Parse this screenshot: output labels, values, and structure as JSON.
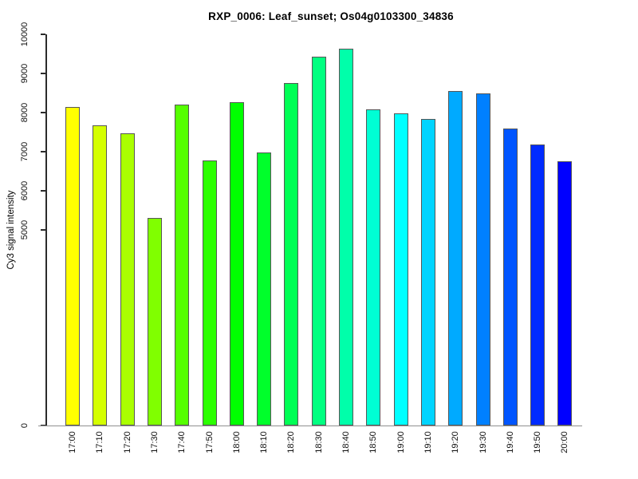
{
  "chart_data": {
    "type": "bar",
    "title": "RXP_0006: Leaf_sunset; Os04g0103300_34836",
    "xlabel": "",
    "ylabel": "Cy3 signal intensity",
    "ylim": [
      0,
      10000
    ],
    "grid": false,
    "legend": "none",
    "y_tick_values": [
      0,
      5000,
      6000,
      7000,
      8000,
      9000,
      10000
    ],
    "y_tick_labels": [
      "0",
      "5000",
      "6000",
      "7000",
      "8000",
      "9000",
      "10000"
    ],
    "categories": [
      "17:00",
      "17:10",
      "17:20",
      "17:30",
      "17:40",
      "17:50",
      "18:00",
      "18:10",
      "18:20",
      "18:30",
      "18:40",
      "18:50",
      "19:00",
      "19:10",
      "19:20",
      "19:30",
      "19:40",
      "19:50",
      "20:00"
    ],
    "values": [
      8140,
      7670,
      7460,
      5310,
      8200,
      6780,
      8270,
      6980,
      8750,
      9430,
      9630,
      8080,
      7980,
      7840,
      8550,
      8490,
      7590,
      7180,
      6760
    ],
    "bar_colors": [
      "#ffff00",
      "#d4ff00",
      "#aaff00",
      "#80ff00",
      "#55ff00",
      "#2bff00",
      "#00ff00",
      "#00ff2b",
      "#00ff55",
      "#00ff80",
      "#00ffaa",
      "#00ffd4",
      "#00ffff",
      "#00d4ff",
      "#00aaff",
      "#0080ff",
      "#0055ff",
      "#002bff",
      "#0000ff"
    ],
    "bar_border_color": "#565656",
    "axis_color": "#2b2b2b",
    "baseline_color": "#8f8f8f",
    "background_color": "#ffffff"
  }
}
